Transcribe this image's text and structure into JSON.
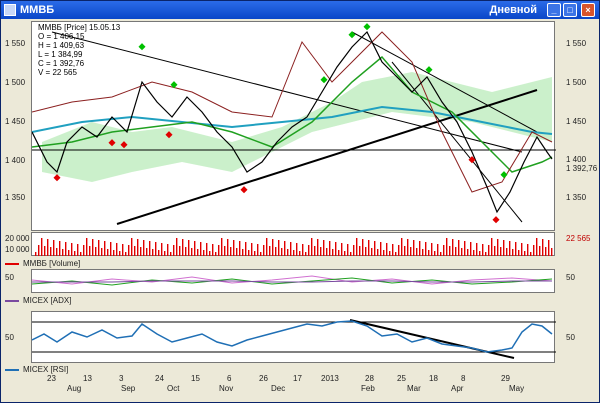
{
  "window": {
    "title": "MMBБ",
    "interval": "Дневной",
    "buttons": {
      "minimize": "_",
      "maximize": "□",
      "close": "×"
    }
  },
  "colors": {
    "titlebar": "#0a46c8",
    "up_marker": "#00c000",
    "down_marker": "#e00000",
    "price": "#000000",
    "rsi": "#1f6fb5",
    "volume_bar": "#e00000"
  },
  "price_panel": {
    "header": "MMBБ [Price] 15.05.13",
    "ohlc": {
      "o": "O = 1 406,15",
      "h": "H = 1 409,63",
      "l": "L = 1 384,99",
      "c": "C = 1 392,76",
      "v": "V = 22 565"
    },
    "y_ticks": [
      "1 550",
      "1 500",
      "1 450",
      "1 400",
      "1 350"
    ],
    "last_price": "1 392,76",
    "current_marker": "1 400"
  },
  "volume_panel": {
    "ticks": [
      "20 000",
      "10 000"
    ],
    "label": "MMBБ [Volume]",
    "last_value": "22 565"
  },
  "adx_panel": {
    "ticks": [
      "50"
    ],
    "label": "MICEX [ADX]"
  },
  "rsi_panel": {
    "ticks": [
      "50"
    ],
    "label": "MICEX [RSI]"
  },
  "x_axis": {
    "days": [
      "23",
      "13",
      "3",
      "24",
      "15",
      "6",
      "26",
      "17",
      "2013",
      "28",
      "25",
      "18",
      "8",
      "29"
    ],
    "months": [
      "Aug",
      "Sep",
      "Oct",
      "Nov",
      "Dec",
      "Feb",
      "Mar",
      "Apr",
      "May"
    ]
  }
}
